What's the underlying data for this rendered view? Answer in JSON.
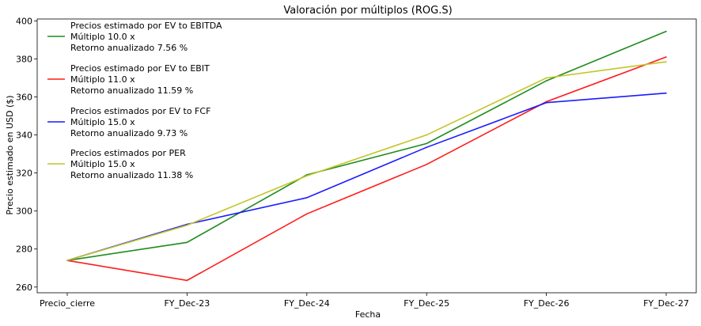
{
  "chart_data": {
    "type": "line",
    "title": "Valoración por múltiplos (ROG.S)",
    "xlabel": "Fecha",
    "ylabel": "Precio estimado en USD ($)",
    "categories": [
      "Precio_cierre",
      "FY_Dec-23",
      "FY_Dec-24",
      "FY_Dec-25",
      "FY_Dec-26",
      "FY_Dec-27"
    ],
    "ylim": [
      257,
      401
    ],
    "yticks": [
      260,
      280,
      300,
      320,
      340,
      360,
      380,
      400
    ],
    "grid": false,
    "legend_position": "upper-left",
    "series": [
      {
        "name": "Precios estimado por EV to EBITDA",
        "legend_lines": [
          "Precios estimado por EV to EBITDA",
          "Múltiplo 10.0 x",
          "Retorno anualizado 7.56 %"
        ],
        "color": "#1f8c1f",
        "values": [
          274,
          283.5,
          319,
          335.5,
          368.5,
          394.5
        ]
      },
      {
        "name": "Precios estimado por EV to EBIT",
        "legend_lines": [
          "Precios estimado por EV to EBIT",
          "Múltiplo 11.0 x",
          "Retorno anualizado 11.59 %"
        ],
        "color": "#ff1a1a",
        "values": [
          274,
          263.5,
          298.5,
          324.5,
          357.5,
          381
        ]
      },
      {
        "name": "Precios estimados por EV to FCF",
        "legend_lines": [
          "Precios estimados por EV to FCF",
          "Múltiplo 15.0 x",
          "Retorno anualizado 9.73 %"
        ],
        "color": "#1a1aff",
        "values": [
          274,
          293,
          307,
          333.5,
          357,
          362
        ]
      },
      {
        "name": "Precios estimados por PER",
        "legend_lines": [
          "Precios estimados por PER",
          "Múltiplo 15.0 x",
          "Retorno anualizado 11.38 %"
        ],
        "color": "#c4c428",
        "values": [
          274,
          292.5,
          318.5,
          340,
          370,
          378.5
        ]
      }
    ]
  }
}
